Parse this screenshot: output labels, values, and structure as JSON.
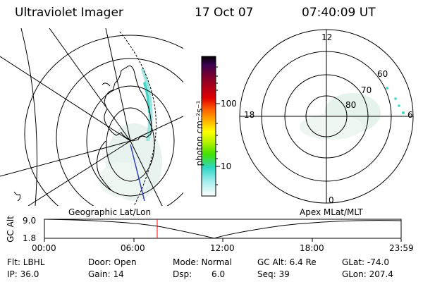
{
  "header": {
    "instrument": "Ultraviolet Imager",
    "date": "17 Oct 07",
    "time": "07:40:09 UT"
  },
  "colorbar": {
    "unit_label": "photon cm⁻²s⁻¹",
    "ticks": [
      "100",
      "10"
    ],
    "colors": [
      "#000000",
      "#3a0050",
      "#7a0030",
      "#b00018",
      "#e00000",
      "#ff6000",
      "#ffb000",
      "#ffff00",
      "#b0f000",
      "#40e000",
      "#30d8c8",
      "#a8eeee",
      "#ffffff"
    ]
  },
  "polar_plot": {
    "hour_labels": {
      "top": "12",
      "left": "18",
      "bottom": "0",
      "right": "6"
    },
    "lat_labels": [
      "60",
      "70",
      "80"
    ]
  },
  "panel_labels": {
    "left": "Geographic Lat/Lon",
    "right": "Apex MLat/MLT"
  },
  "altitude_strip": {
    "axis_label": "GC Alt",
    "y_ticks": [
      "9.0",
      "1.8"
    ],
    "x_ticks": [
      "00:00",
      "06:00",
      "12:00",
      "18:00",
      "23:59"
    ],
    "marker_time": "07:40"
  },
  "info": {
    "flt_label": "Flt: LBHL",
    "ip_label": "IP: 36.0",
    "door_label": "Door: Open",
    "gain_label": "Gain: 14",
    "mode_label": "Mode: Normal",
    "dsp_label": "Dsp:",
    "dsp_value": "6.0",
    "gcalt_label": "GC Alt: 6.4 Re",
    "seq_label": "Seq: 39",
    "glat_label": "GLat: -74.0",
    "glon_label": "GLon: 207.4"
  }
}
